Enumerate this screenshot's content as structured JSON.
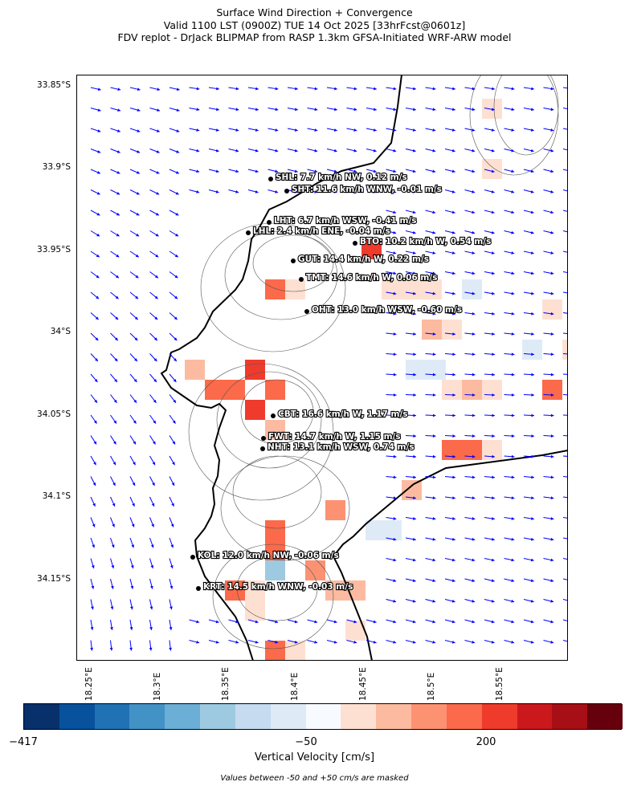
{
  "title": {
    "line1": "Surface Wind Direction + Convergence",
    "line2": "Valid 1100 LST (0900Z) TUE 14 Oct 2025 [33hrFcst@0601z]",
    "line3": "FDV replot - DrJack BLIPMAP from RASP 1.3km GFSA-Initiated WRF-ARW model"
  },
  "axes": {
    "lat_ticks": [
      "33.85°S",
      "33.9°S",
      "33.95°S",
      "34°S",
      "34.05°S",
      "34.1°S",
      "34.15°S"
    ],
    "lon_ticks": [
      "18.25°E",
      "18.3°E",
      "18.35°E",
      "18.4°E",
      "18.45°E",
      "18.5°E",
      "18.55°E"
    ]
  },
  "stations": [
    {
      "code": "SHL",
      "label": "SHL: 7.7 km/h NW, 0.12 m/s"
    },
    {
      "code": "SHT",
      "label": "SHT: 11.6 km/h WNW, -0.01 m/s"
    },
    {
      "code": "LHT",
      "label": "LHT: 6.7 km/h WSW, -0.41 m/s"
    },
    {
      "code": "LHL",
      "label": "LHL: 2.4 km/h ENE, -0.04 m/s"
    },
    {
      "code": "BTO",
      "label": "BTO: 10.2 km/h W, 0.54 m/s"
    },
    {
      "code": "GUT",
      "label": "GUT: 14.4 km/h W, 0.22 m/s"
    },
    {
      "code": "TMT",
      "label": "TMT: 14.6 km/h W, 0.06 m/s"
    },
    {
      "code": "OHT",
      "label": "OHT: 13.0 km/h WSW, -0.60 m/s"
    },
    {
      "code": "CBT",
      "label": "CBT: 16.6 km/h W, 1.17 m/s"
    },
    {
      "code": "FWT",
      "label": "FWT: 14.7 km/h W, 1.15 m/s"
    },
    {
      "code": "NHT",
      "label": "NHT: 13.1 km/h WSW, 0.74 m/s"
    },
    {
      "code": "KOL",
      "label": "KOL: 12.0 km/h NW, -0.06 m/s"
    },
    {
      "code": "KRT",
      "label": "KRT: 14.5 km/h WNW, -0.03 m/s"
    }
  ],
  "colorbar": {
    "title": "Vertical Velocity [cm/s]",
    "tick_labels": [
      "−417",
      "−50",
      "200"
    ],
    "colors": [
      "#08306b",
      "#08519c",
      "#2171b5",
      "#4292c6",
      "#6baed6",
      "#9ecae1",
      "#c6dbef",
      "#deebf7",
      "#f7fbff",
      "#fee0d2",
      "#fcbba1",
      "#fc9272",
      "#fb6a4a",
      "#ef3b2c",
      "#cb181d",
      "#a50f15",
      "#67000d"
    ]
  },
  "note": "Values between -50 and +50 cm/s are masked",
  "colors": {
    "wind_arrow": "#0000ff",
    "coastline": "#000000",
    "contour": "#555555"
  }
}
